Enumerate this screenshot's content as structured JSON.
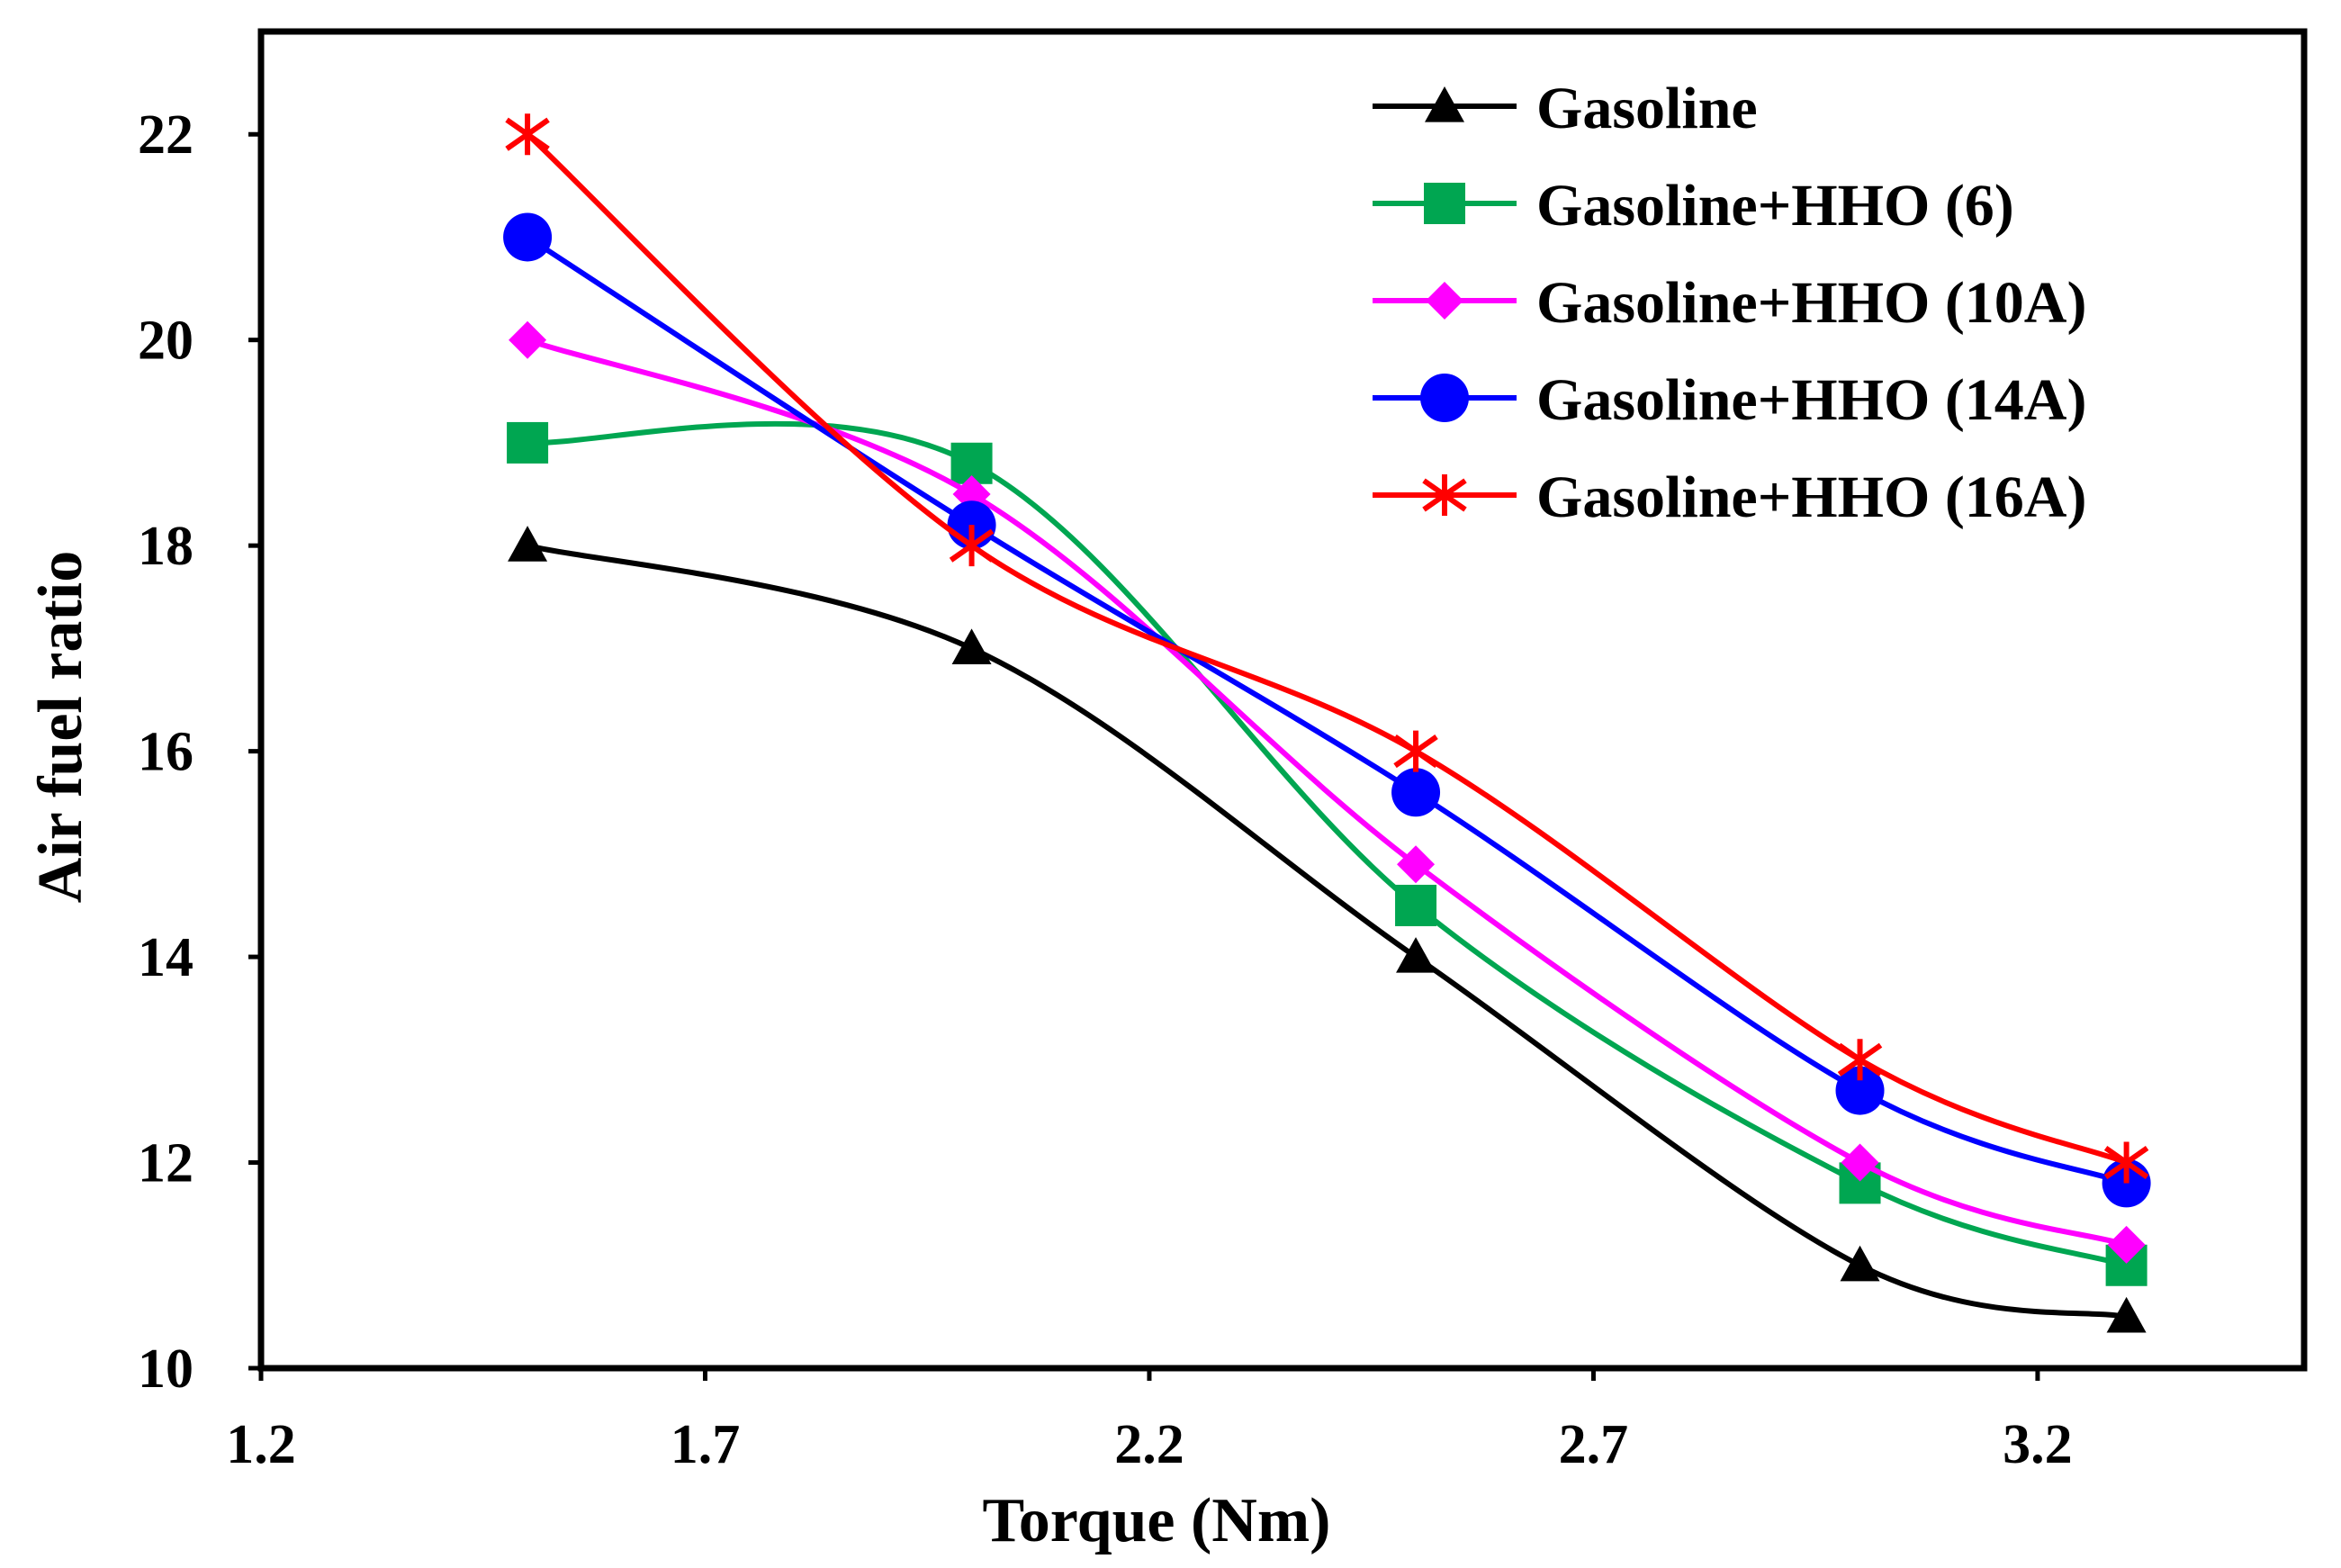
{
  "chart_data": {
    "type": "line",
    "title": "",
    "xlabel": "Torque (Nm)",
    "ylabel": "Air fuel ratio",
    "xlim": [
      1.2,
      3.5
    ],
    "ylim": [
      10,
      23
    ],
    "xticks": [
      1.2,
      1.7,
      2.2,
      2.7,
      3.2
    ],
    "xtick_labels": [
      "1.2",
      "1.7",
      "2.2",
      "2.7",
      "3.2"
    ],
    "yticks": [
      10,
      12,
      14,
      16,
      18,
      20,
      22
    ],
    "ytick_labels": [
      "10",
      "12",
      "14",
      "16",
      "18",
      "20",
      "22"
    ],
    "grid": false,
    "legend_position": "top-right",
    "smooth": true,
    "series": [
      {
        "name": "Gasoline",
        "color": "#000000",
        "marker": "triangle",
        "x": [
          1.5,
          2.0,
          2.5,
          3.0,
          3.3
        ],
        "y": [
          18.0,
          17.0,
          14.0,
          11.0,
          10.5
        ]
      },
      {
        "name": "Gasoline+HHO (6)",
        "color": "#00A651",
        "marker": "square",
        "x": [
          1.5,
          2.0,
          2.5,
          3.0,
          3.3
        ],
        "y": [
          19.0,
          18.8,
          14.5,
          11.8,
          11.0
        ]
      },
      {
        "name": "Gasoline+HHO (10A)",
        "color": "#FF00FF",
        "marker": "diamond",
        "x": [
          1.5,
          2.0,
          2.5,
          3.0,
          3.3
        ],
        "y": [
          20.0,
          18.5,
          14.9,
          12.0,
          11.2
        ]
      },
      {
        "name": "Gasoline+HHO (14A)",
        "color": "#0000FF",
        "marker": "circle",
        "x": [
          1.5,
          2.0,
          2.5,
          3.0,
          3.3
        ],
        "y": [
          21.0,
          18.2,
          15.6,
          12.7,
          11.8
        ]
      },
      {
        "name": "Gasoline+HHO (16A)",
        "color": "#FF0000",
        "marker": "star",
        "x": [
          1.5,
          2.0,
          2.5,
          3.0,
          3.3
        ],
        "y": [
          22.0,
          18.0,
          16.0,
          13.0,
          12.0
        ]
      }
    ]
  }
}
